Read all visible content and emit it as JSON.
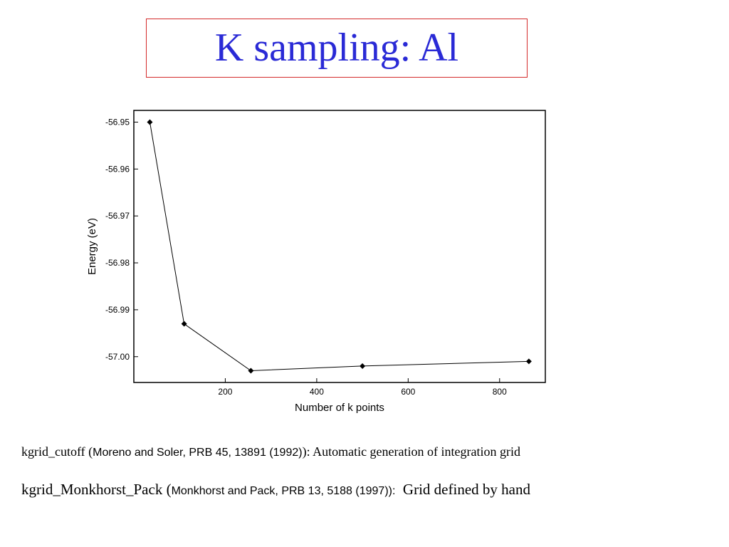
{
  "slide": {
    "title": "K sampling: Al"
  },
  "chart_data": {
    "type": "line",
    "xlabel": "Number of k points",
    "ylabel": "Energy (eV)",
    "x_ticks": [
      200,
      400,
      600,
      800
    ],
    "y_ticks": [
      -56.95,
      -56.96,
      -56.97,
      -56.98,
      -56.99,
      -57.0
    ],
    "y_tick_labels": [
      "-56.95",
      "-56.96",
      "-56.97",
      "-56.98",
      "-56.99",
      "-57.00"
    ],
    "xlim": [
      0,
      900
    ],
    "ylim": [
      -57.0055,
      -56.9475
    ],
    "grid": false,
    "marker": "diamond",
    "series": [
      {
        "x": [
          35,
          110,
          256,
          500,
          864
        ],
        "y": [
          -56.95,
          -56.993,
          -57.003,
          -57.002,
          -57.001
        ]
      }
    ]
  },
  "notes": {
    "line1": {
      "key": "kgrid_cutoff (",
      "ref": "Moreno and Soler, PRB 45, 13891 (1992)",
      "tail": "): Automatic generation of integration grid"
    },
    "line2": {
      "key": "kgrid_Monkhorst_Pack (",
      "ref": "Monkhorst and Pack, PRB 13, 5188 (1997)):",
      "tail": "Grid defined by hand"
    }
  }
}
